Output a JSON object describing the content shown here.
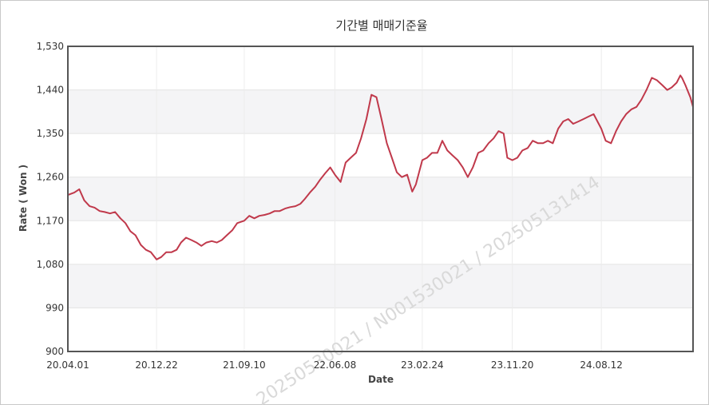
{
  "watermark": "20250530021 / N001530021 / 202505131414",
  "chart_data": {
    "type": "line",
    "title": "기간별 매매기준율",
    "xlabel": "Date",
    "ylabel": "Rate ( Won )",
    "ylim": [
      900,
      1530
    ],
    "yticks": [
      "1,530",
      "1,440",
      "1,350",
      "1,260",
      "1,170",
      "1,080",
      "990",
      "900"
    ],
    "ytick_values": [
      1530,
      1440,
      1350,
      1260,
      1170,
      1080,
      990,
      900
    ],
    "xticks": [
      "20.04.01",
      "20.12.22",
      "21.09.10",
      "22.06.08",
      "23.02.24",
      "23.11.20",
      "24.08.12"
    ],
    "xlim": [
      "2020-04-01",
      "2025-05-13"
    ],
    "grid": true,
    "line_color": "#c0394b",
    "series": [
      {
        "x": [
          "2020-04-01",
          "2020-04-20",
          "2020-05-05",
          "2020-05-20",
          "2020-06-05",
          "2020-06-20",
          "2020-07-05",
          "2020-07-20",
          "2020-08-05",
          "2020-08-20",
          "2020-09-05",
          "2020-09-20",
          "2020-10-05",
          "2020-10-20",
          "2020-11-05",
          "2020-11-20",
          "2020-12-05",
          "2020-12-22",
          "2021-01-05",
          "2021-01-20",
          "2021-02-05",
          "2021-02-20",
          "2021-03-05",
          "2021-03-20",
          "2021-04-05",
          "2021-04-20",
          "2021-05-05",
          "2021-05-20",
          "2021-06-05",
          "2021-06-20",
          "2021-07-05",
          "2021-07-20",
          "2021-08-05",
          "2021-08-20",
          "2021-09-10",
          "2021-09-25",
          "2021-10-10",
          "2021-10-25",
          "2021-11-10",
          "2021-11-25",
          "2021-12-10",
          "2021-12-25",
          "2022-01-10",
          "2022-01-25",
          "2022-02-10",
          "2022-02-25",
          "2022-03-10",
          "2022-03-25",
          "2022-04-10",
          "2022-04-25",
          "2022-05-10",
          "2022-05-25",
          "2022-06-08",
          "2022-06-25",
          "2022-07-10",
          "2022-07-25",
          "2022-08-10",
          "2022-08-25",
          "2022-09-10",
          "2022-09-25",
          "2022-10-10",
          "2022-10-25",
          "2022-11-10",
          "2022-11-25",
          "2022-12-10",
          "2022-12-25",
          "2023-01-10",
          "2023-01-25",
          "2023-02-05",
          "2023-02-24",
          "2023-03-10",
          "2023-03-25",
          "2023-04-10",
          "2023-04-25",
          "2023-05-10",
          "2023-05-25",
          "2023-06-10",
          "2023-06-25",
          "2023-07-10",
          "2023-07-25",
          "2023-08-10",
          "2023-08-25",
          "2023-09-10",
          "2023-09-25",
          "2023-10-10",
          "2023-10-25",
          "2023-11-05",
          "2023-11-20",
          "2023-12-05",
          "2023-12-20",
          "2024-01-05",
          "2024-01-20",
          "2024-02-05",
          "2024-02-20",
          "2024-03-05",
          "2024-03-20",
          "2024-04-05",
          "2024-04-20",
          "2024-05-05",
          "2024-05-20",
          "2024-06-05",
          "2024-06-20",
          "2024-07-05",
          "2024-07-20",
          "2024-08-12",
          "2024-08-25",
          "2024-09-10",
          "2024-09-25",
          "2024-10-10",
          "2024-10-25",
          "2024-11-10",
          "2024-11-25",
          "2024-12-10",
          "2024-12-25",
          "2025-01-10",
          "2025-01-25",
          "2025-02-10",
          "2025-02-25",
          "2025-03-10",
          "2025-03-25",
          "2025-04-05",
          "2025-04-10",
          "2025-04-20",
          "2025-05-05",
          "2025-05-13"
        ],
        "y": [
          1223,
          1228,
          1235,
          1212,
          1200,
          1197,
          1190,
          1188,
          1185,
          1188,
          1175,
          1165,
          1148,
          1140,
          1120,
          1110,
          1105,
          1090,
          1095,
          1105,
          1105,
          1110,
          1125,
          1135,
          1130,
          1125,
          1118,
          1125,
          1128,
          1125,
          1130,
          1140,
          1150,
          1165,
          1170,
          1180,
          1175,
          1180,
          1182,
          1185,
          1190,
          1190,
          1195,
          1198,
          1200,
          1205,
          1215,
          1228,
          1240,
          1255,
          1268,
          1280,
          1265,
          1250,
          1290,
          1300,
          1310,
          1340,
          1380,
          1430,
          1425,
          1380,
          1330,
          1300,
          1270,
          1260,
          1265,
          1230,
          1245,
          1295,
          1300,
          1310,
          1310,
          1335,
          1315,
          1305,
          1295,
          1280,
          1260,
          1280,
          1310,
          1315,
          1330,
          1340,
          1355,
          1350,
          1300,
          1295,
          1300,
          1315,
          1320,
          1335,
          1330,
          1330,
          1335,
          1330,
          1360,
          1375,
          1380,
          1370,
          1375,
          1380,
          1385,
          1390,
          1360,
          1335,
          1330,
          1355,
          1375,
          1390,
          1400,
          1405,
          1420,
          1440,
          1465,
          1460,
          1450,
          1440,
          1445,
          1455,
          1470,
          1465,
          1450,
          1425,
          1405
        ]
      }
    ]
  }
}
